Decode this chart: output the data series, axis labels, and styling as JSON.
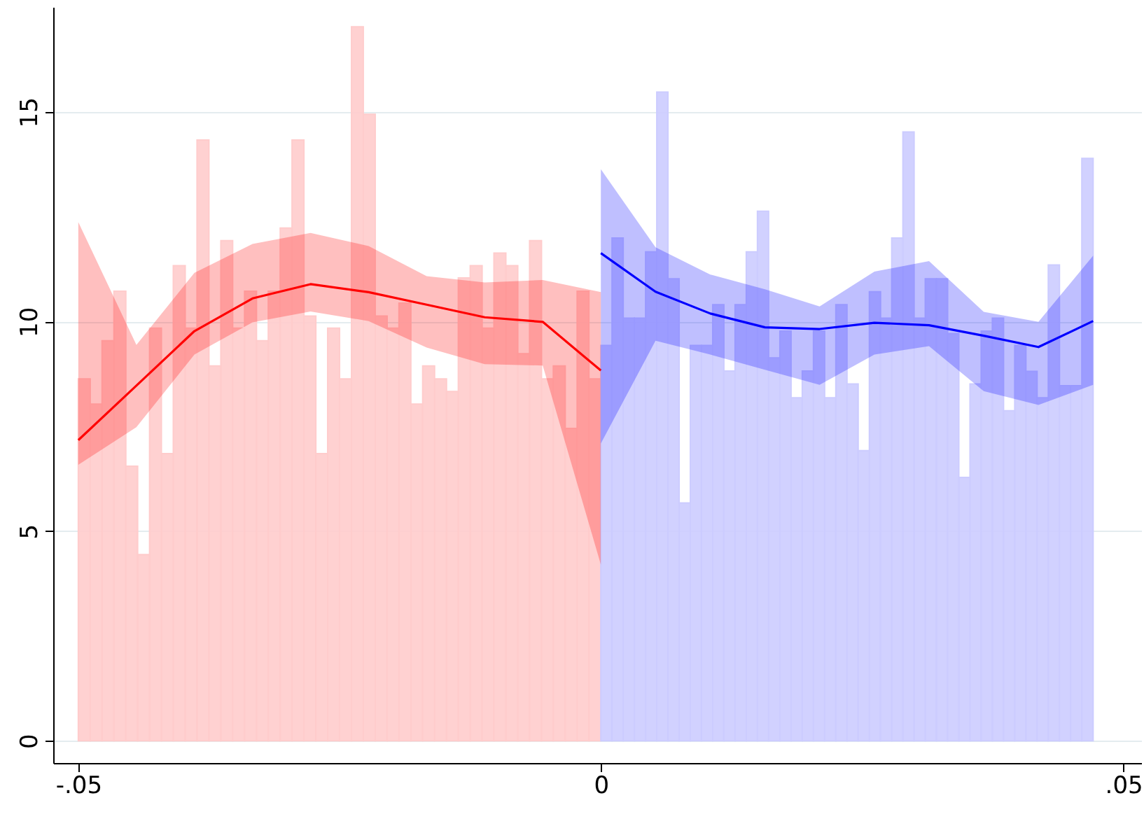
{
  "chart_data": {
    "type": "histogram",
    "xlim": [
      -0.0524,
      0.0517
    ],
    "ylim": [
      -0.53,
      17.5
    ],
    "xticks": [
      {
        "value": -0.05,
        "label": "-.05"
      },
      0,
      {
        "value": 0.05,
        "label": ".05"
      }
    ],
    "yticks": [
      0,
      5,
      10,
      15
    ],
    "grid": "y",
    "series": [
      {
        "color": "#ffcccc",
        "bins": [
          -0.05,
          -0.04886,
          -0.04773,
          -0.04659,
          -0.04545,
          -0.04432,
          -0.04318,
          -0.04205,
          -0.04091,
          -0.03977,
          -0.03864,
          -0.0375,
          -0.03636,
          -0.03523,
          -0.03409,
          -0.03295,
          -0.03182,
          -0.03068,
          -0.02955,
          -0.02841,
          -0.02727,
          -0.02614,
          -0.025,
          -0.02386,
          -0.02273,
          -0.02159,
          -0.02045,
          -0.01932,
          -0.01818,
          -0.01705,
          -0.01591,
          -0.01477,
          -0.01364,
          -0.0125,
          -0.01136,
          -0.01023,
          -0.00909,
          -0.00795,
          -0.00682,
          -0.00568,
          -0.00455,
          -0.00341,
          -0.00227,
          -0.00114,
          0
        ],
        "values": [
          8.63,
          8.03,
          9.54,
          10.72,
          6.55,
          4.44,
          9.84,
          6.85,
          11.33,
          9.84,
          14.33,
          8.94,
          11.93,
          9.84,
          10.72,
          9.54,
          10.72,
          12.23,
          14.33,
          10.13,
          6.85,
          9.84,
          8.63,
          17.03,
          14.94,
          10.13,
          9.84,
          10.44,
          8.03,
          8.94,
          8.63,
          8.33,
          11.04,
          11.33,
          9.84,
          11.63,
          11.33,
          9.23,
          11.93,
          8.63,
          8.94,
          7.45,
          10.72,
          8.63
        ]
      },
      {
        "color": "#ccccff",
        "bins": [
          0,
          0.00107,
          0.00214,
          0.00321,
          0.00428,
          0.00535,
          0.00642,
          0.00749,
          0.00856,
          0.00963,
          0.0107,
          0.01177,
          0.01284,
          0.01391,
          0.01498,
          0.01605,
          0.01713,
          0.0182,
          0.01927,
          0.02034,
          0.02141,
          0.02248,
          0.02355,
          0.02462,
          0.02569,
          0.02676,
          0.02783,
          0.0289,
          0.02997,
          0.03104,
          0.03211,
          0.03318,
          0.03425,
          0.03532,
          0.03639,
          0.03746,
          0.03853,
          0.0396,
          0.04067,
          0.04174,
          0.04281,
          0.04388,
          0.04495,
          0.04602,
          0.0471
        ],
        "values": [
          9.43,
          11.99,
          10.08,
          10.08,
          11.66,
          15.47,
          11.02,
          5.67,
          9.43,
          9.43,
          10.4,
          8.82,
          10.4,
          11.66,
          12.63,
          9.13,
          9.77,
          8.18,
          8.82,
          9.77,
          8.18,
          10.4,
          8.51,
          6.92,
          10.71,
          10.08,
          11.99,
          14.52,
          10.08,
          11.02,
          11.02,
          9.71,
          6.28,
          8.51,
          9.77,
          10.08,
          7.87,
          9.43,
          8.81,
          8.18,
          11.35,
          8.47,
          8.47,
          13.89
        ]
      },
      {
        "type": "line",
        "color": "#ff0000",
        "x": [
          -0.05,
          -0.04444,
          -0.03889,
          -0.03333,
          -0.02778,
          -0.02222,
          -0.01667,
          -0.01111,
          -0.00556,
          0
        ],
        "values": [
          7.17,
          8.47,
          9.77,
          10.55,
          10.89,
          10.7,
          10.4,
          10.1,
          9.99,
          8.83
        ],
        "lower": [
          6.58,
          7.48,
          9.21,
          9.98,
          10.24,
          10.01,
          9.38,
          8.98,
          8.95,
          4.2
        ],
        "upper": [
          12.37,
          9.44,
          11.16,
          11.85,
          12.11,
          11.8,
          11.08,
          10.93,
          10.99,
          10.7
        ]
      },
      {
        "type": "line",
        "color": "#0000ff",
        "x": [
          0,
          0.00523,
          0.01047,
          0.0157,
          0.02093,
          0.02617,
          0.0314,
          0.03663,
          0.04187,
          0.0471
        ],
        "values": [
          11.63,
          10.71,
          10.19,
          9.86,
          9.82,
          9.97,
          9.91,
          9.66,
          9.39,
          10.01
        ],
        "lower": [
          7.09,
          9.54,
          9.21,
          8.85,
          8.49,
          9.21,
          9.41,
          8.34,
          8.01,
          8.49
        ],
        "upper": [
          13.63,
          11.77,
          11.12,
          10.77,
          10.36,
          11.19,
          11.44,
          10.23,
          9.99,
          11.57
        ]
      }
    ]
  }
}
